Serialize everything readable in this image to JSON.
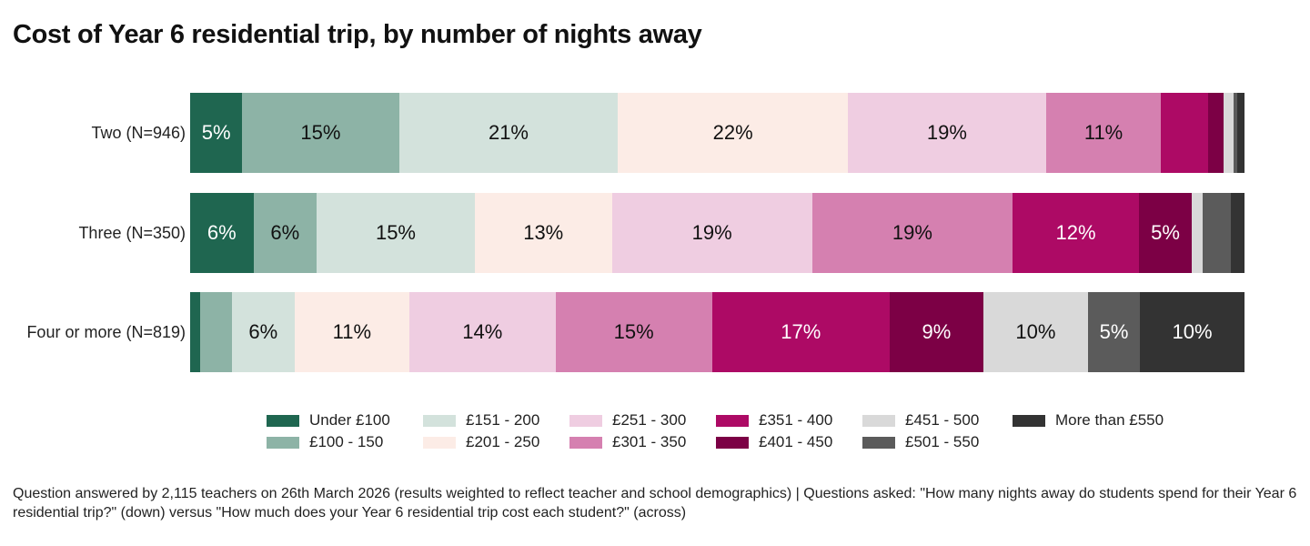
{
  "title": "Cost of Year 6 residential trip, by number of nights away",
  "chart_data": {
    "type": "bar",
    "orientation": "horizontal",
    "stacked": true,
    "title": "Cost of Year 6 residential trip, by number of nights away",
    "categories": [
      "Two (N=946)",
      "Three (N=350)",
      "Four or more (N=819)"
    ],
    "series": [
      {
        "name": "Under £100",
        "color": "#1f6650",
        "text_color": "#ffffff",
        "values": [
          5,
          6,
          1
        ]
      },
      {
        "name": "£100 - 150",
        "color": "#8db3a6",
        "text_color": "#111111",
        "values": [
          15,
          6,
          3
        ]
      },
      {
        "name": "£151 - 200",
        "color": "#d3e2dc",
        "text_color": "#111111",
        "values": [
          21,
          15,
          6
        ]
      },
      {
        "name": "£201 - 250",
        "color": "#fcece6",
        "text_color": "#111111",
        "values": [
          22,
          13,
          11
        ]
      },
      {
        "name": "£251 - 300",
        "color": "#efcde1",
        "text_color": "#111111",
        "values": [
          19,
          19,
          14
        ]
      },
      {
        "name": "£301 - 350",
        "color": "#d580b0",
        "text_color": "#111111",
        "values": [
          11,
          19,
          15
        ]
      },
      {
        "name": "£351 - 400",
        "color": "#ad0a65",
        "text_color": "#ffffff",
        "values": [
          4.5,
          12,
          17
        ]
      },
      {
        "name": "£401 - 450",
        "color": "#7c0045",
        "text_color": "#ffffff",
        "values": [
          1.5,
          5,
          9
        ]
      },
      {
        "name": "£451 - 500",
        "color": "#d9d9d9",
        "text_color": "#111111",
        "values": [
          1,
          1,
          10
        ]
      },
      {
        "name": "£501 - 550",
        "color": "#5b5b5b",
        "text_color": "#ffffff",
        "values": [
          0.3,
          2.7,
          5
        ]
      },
      {
        "name": "More than £550",
        "color": "#333333",
        "text_color": "#ffffff",
        "values": [
          0.7,
          1.3,
          10
        ]
      }
    ],
    "data_labels": [
      [
        "5%",
        "15%",
        "21%",
        "22%",
        "19%",
        "11%",
        "",
        "",
        "",
        "",
        ""
      ],
      [
        "6%",
        "6%",
        "15%",
        "13%",
        "19%",
        "19%",
        "12%",
        "5%",
        "",
        "",
        ""
      ],
      [
        "",
        "",
        "6%",
        "11%",
        "14%",
        "15%",
        "17%",
        "9%",
        "10%",
        "5%",
        "10%"
      ]
    ],
    "legend_position": "bottom",
    "legend_columns": 6
  },
  "footnote": "Question answered by 2,115 teachers on 26th March 2026 (results weighted to reflect teacher and school demographics) | Questions asked: \"How many nights away do students spend for their Year 6 residential trip?\" (down) versus \"How much does your Year 6 residential trip cost each student?\" (across)"
}
